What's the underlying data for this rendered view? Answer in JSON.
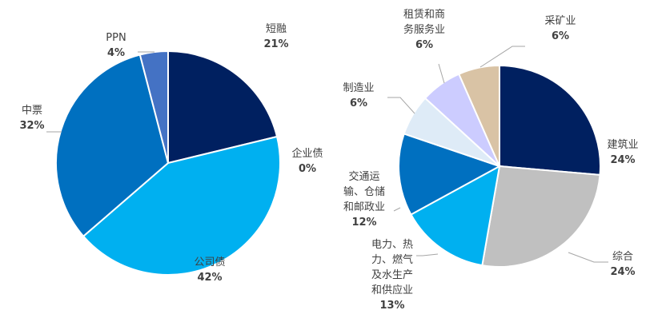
{
  "colors": {
    "navy": "#002060",
    "cyan": "#00b0f0",
    "blue": "#0070c0",
    "periwinkle": "#4472c4",
    "gray": "#c0c0c0",
    "pale_blue": "#deebf7",
    "lavender": "#ccccff",
    "tan": "#d9c3a5"
  },
  "chart_data": [
    {
      "type": "pie",
      "slices": [
        {
          "label": "短融",
          "value": 21,
          "display": "21%",
          "color": "#002060"
        },
        {
          "label": "企业债",
          "value": 0,
          "display": "0%",
          "color": "#002060"
        },
        {
          "label": "公司债",
          "value": 42,
          "display": "42%",
          "color": "#00b0f0"
        },
        {
          "label": "中票",
          "value": 32,
          "display": "32%",
          "color": "#0070c0"
        },
        {
          "label": "PPN",
          "value": 4,
          "display": "4%",
          "color": "#4472c4"
        }
      ]
    },
    {
      "type": "pie",
      "slices": [
        {
          "label": "建筑业",
          "value": 24,
          "display": "24%",
          "color": "#002060"
        },
        {
          "label": "综合",
          "value": 24,
          "display": "24%",
          "color": "#c0c0c0"
        },
        {
          "label": "电力、热力、燃气及水生产和供应业",
          "value": 13,
          "display": "13%",
          "color": "#00b0f0"
        },
        {
          "label": "交通运输、仓储和邮政业",
          "value": 12,
          "display": "12%",
          "color": "#0070c0"
        },
        {
          "label": "制造业",
          "value": 6,
          "display": "6%",
          "color": "#deebf7"
        },
        {
          "label": "租赁和商务服务业",
          "value": 6,
          "display": "6%",
          "color": "#ccccff"
        },
        {
          "label": "采矿业",
          "value": 6,
          "display": "6%",
          "color": "#d9c3a5"
        }
      ]
    }
  ]
}
